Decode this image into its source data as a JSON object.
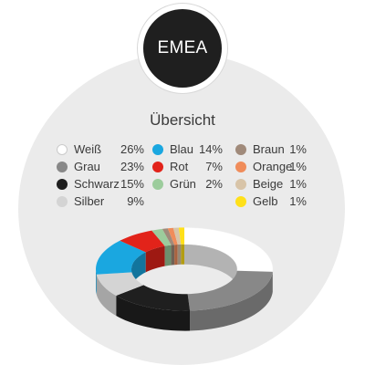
{
  "region": "EMEA",
  "chart_data": {
    "type": "pie",
    "style": "3d-donut",
    "title": "Übersicht",
    "slices": [
      {
        "label": "Weiß",
        "value": 26,
        "value_label": "26%",
        "color": "#ffffff"
      },
      {
        "label": "Grau",
        "value": 23,
        "value_label": "23%",
        "color": "#888888"
      },
      {
        "label": "Schwarz",
        "value": 15,
        "value_label": "15%",
        "color": "#1f1f1f"
      },
      {
        "label": "Silber",
        "value": 9,
        "value_label": "9%",
        "color": "#d4d4d4"
      },
      {
        "label": "Blau",
        "value": 14,
        "value_label": "14%",
        "color": "#1aa7e0"
      },
      {
        "label": "Rot",
        "value": 7,
        "value_label": "7%",
        "color": "#e2231a"
      },
      {
        "label": "Grün",
        "value": 2,
        "value_label": "2%",
        "color": "#9ccc9c"
      },
      {
        "label": "Braun",
        "value": 1,
        "value_label": "1%",
        "color": "#a08a7a"
      },
      {
        "label": "Orange",
        "value": 1,
        "value_label": "1%",
        "color": "#f08c5a"
      },
      {
        "label": "Beige",
        "value": 1,
        "value_label": "1%",
        "color": "#d8c4a8"
      },
      {
        "label": "Gelb",
        "value": 1,
        "value_label": "1%",
        "color": "#ffe01a"
      }
    ],
    "legend_columns": [
      [
        "Weiß",
        "Grau",
        "Schwarz",
        "Silber"
      ],
      [
        "Blau",
        "Rot",
        "Grün"
      ],
      [
        "Braun",
        "Orange",
        "Beige",
        "Gelb"
      ]
    ],
    "drawing_order": [
      "Weiß",
      "Grau",
      "Schwarz",
      "Silber",
      "Blau",
      "Rot",
      "Grün",
      "Braun",
      "Orange",
      "Beige",
      "Gelb"
    ]
  }
}
